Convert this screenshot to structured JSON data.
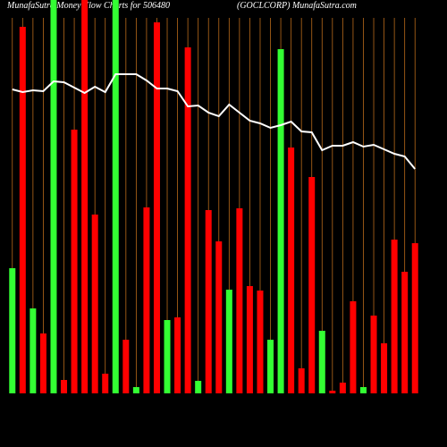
{
  "chart_data": {
    "type": "bar",
    "title": "MunafaSutra  Money Flow  Charts for 506480",
    "subtitle": "(GOCLCORP) MunafaSutra.com",
    "ylim": [
      0,
      440
    ],
    "values": [
      140,
      410,
      95,
      67,
      440,
      15,
      295,
      440,
      200,
      22,
      440,
      60,
      7,
      208,
      415,
      82,
      85,
      387,
      14,
      205,
      170,
      116,
      207,
      120,
      115,
      60,
      385,
      275,
      28,
      242,
      70,
      3,
      12,
      103,
      7,
      87,
      56,
      172,
      136,
      168
    ],
    "colors": [
      "#33ff33",
      "#ff0000",
      "#33ff33",
      "#ff0000",
      "#33ff33",
      "#ff0000",
      "#ff0000",
      "#ff0000",
      "#ff0000",
      "#ff0000",
      "#33ff33",
      "#ff0000",
      "#33ff33",
      "#ff0000",
      "#ff0000",
      "#33ff33",
      "#ff0000",
      "#ff0000",
      "#33ff33",
      "#ff0000",
      "#ff0000",
      "#33ff33",
      "#ff0000",
      "#ff0000",
      "#ff0000",
      "#33ff33",
      "#33ff33",
      "#ff0000",
      "#ff0000",
      "#ff0000",
      "#33ff33",
      "#ff0000",
      "#ff0000",
      "#ff0000",
      "#33ff33",
      "#ff0000",
      "#ff0000",
      "#ff0000",
      "#ff0000",
      "#ff0000"
    ],
    "line_values": [
      340,
      337,
      339,
      338,
      349,
      348,
      342,
      336,
      343,
      337,
      357,
      357,
      357,
      350,
      341,
      341,
      338,
      321,
      322,
      314,
      310,
      323,
      314,
      305,
      302,
      297,
      300,
      304,
      293,
      292,
      272,
      277,
      277,
      281,
      276,
      278,
      273,
      268,
      265,
      251
    ]
  }
}
